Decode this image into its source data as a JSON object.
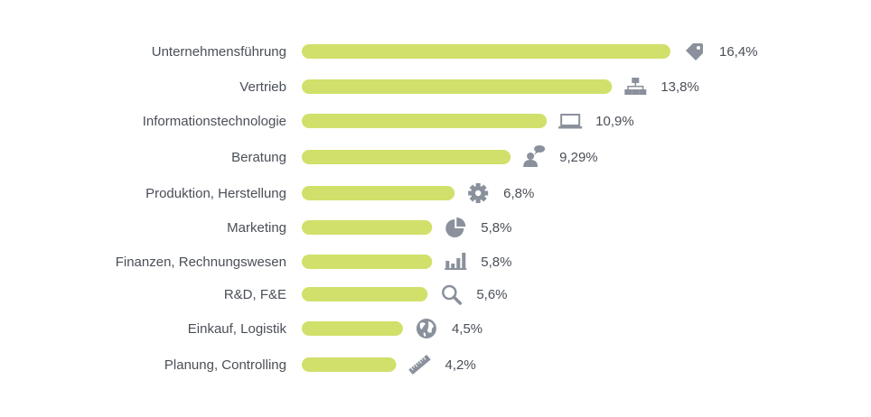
{
  "chart_data": {
    "type": "bar",
    "orientation": "horizontal",
    "title": "",
    "xlabel": "",
    "ylabel": "",
    "xlim": [
      0,
      16.4
    ],
    "grid": false,
    "legend": "none",
    "bar_color": "#d1e06a",
    "icon_color": "#8a919c",
    "categories": [
      "Unternehmensführung",
      "Vertrieb",
      "Informationstechnologie",
      "Beratung",
      "Produktion, Herstellung",
      "Marketing",
      "Finanzen, Rechnungswesen",
      "R&D, F&E",
      "Einkauf, Logistik",
      "Planung, Controlling"
    ],
    "values": [
      16.4,
      13.8,
      10.9,
      9.29,
      6.8,
      5.8,
      5.8,
      5.6,
      4.5,
      4.2
    ],
    "value_labels": [
      "16,4%",
      "13,8%",
      "10,9%",
      "9,29%",
      "6,8%",
      "5,8%",
      "5,8%",
      "5,6%",
      "4,5%",
      "4,2%"
    ],
    "icons": [
      "price-tag-icon",
      "org-chart-icon",
      "laptop-icon",
      "person-speech-icon",
      "gear-icon",
      "pie-chart-icon",
      "bar-chart-icon",
      "magnifier-icon",
      "globe-icon",
      "ruler-icon"
    ]
  }
}
